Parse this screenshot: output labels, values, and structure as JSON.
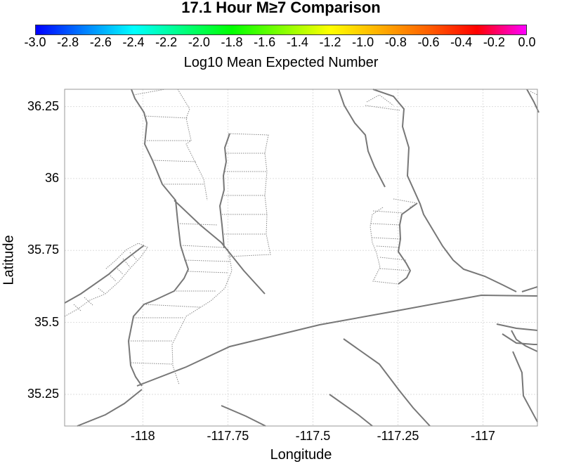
{
  "title": "17.1 Hour M≥7 Comparison",
  "colorbar": {
    "label": "Log10 Mean Expected Number",
    "ticks": [
      "-3.0",
      "-2.8",
      "-2.6",
      "-2.4",
      "-2.2",
      "-2.0",
      "-1.8",
      "-1.6",
      "-1.4",
      "-1.2",
      "-1.0",
      "-0.8",
      "-0.6",
      "-0.4",
      "-0.2",
      "0.0"
    ],
    "colors": [
      "#0000ff",
      "#0080ff",
      "#00ffff",
      "#00ff80",
      "#00ff00",
      "#80ff00",
      "#ffff00",
      "#ffb000",
      "#ff6000",
      "#ff0000",
      "#ff00ff"
    ]
  },
  "map": {
    "xlabel": "Longitude",
    "ylabel": "Latitude",
    "x_ticks": [
      "-118",
      "-117.75",
      "-117.5",
      "-117.25",
      "-117"
    ],
    "y_ticks": [
      "36.25",
      "36",
      "35.75",
      "35.5",
      "35.25"
    ],
    "x_range": [
      -118.23,
      -116.84
    ],
    "y_range": [
      35.14,
      36.31
    ],
    "fault_color": "#777777",
    "grid_color": "#dddddd"
  }
}
